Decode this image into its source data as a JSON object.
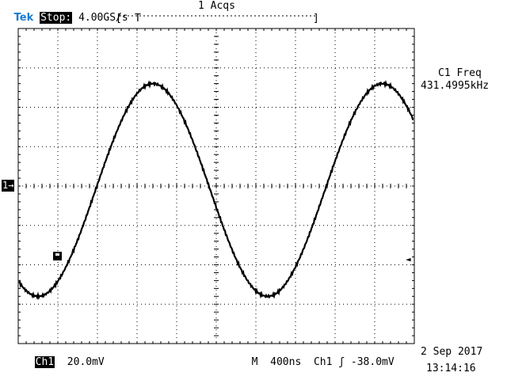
{
  "header": {
    "brand": "Tek",
    "run_state": "Stop:",
    "sample_rate": "4.00GS/s",
    "acquisitions": "1 Acqs",
    "record_bracket_left": "[",
    "record_trigger_marker": "T",
    "record_bracket_right": "]"
  },
  "measurement": {
    "label": "C1 Freq",
    "value": "431.4995kHz"
  },
  "markers": {
    "channel_ground": "1→",
    "trigger_level": "◄"
  },
  "footer": {
    "channel": "Ch1",
    "volts_per_div": "20.0mV",
    "timebase_prefix": "M",
    "time_per_div": "400ns",
    "trigger_source": "Ch1",
    "trigger_slope": "ʃ",
    "trigger_level": "-38.0mV",
    "date": "2 Sep 2017",
    "time": "13:14:16"
  },
  "colors": {
    "brand": "#1a7bd0",
    "trace": "#000000",
    "grid": "#000000",
    "background": "#ffffff"
  },
  "chart_data": {
    "type": "line",
    "title": "",
    "xlabel": "",
    "ylabel": "",
    "x_divisions": 10,
    "y_divisions": 8,
    "x_units_per_div": "400ns",
    "y_units_per_div": "20.0mV",
    "xlim_div": [
      0,
      10
    ],
    "ylim_div": [
      -4,
      4
    ],
    "series": [
      {
        "waveform": "sine",
        "frequency_khz": 431.4995,
        "amplitude_div": 2.7,
        "offset_div": -0.1,
        "first_peak_div": 3.4
      }
    ],
    "grid": true
  }
}
